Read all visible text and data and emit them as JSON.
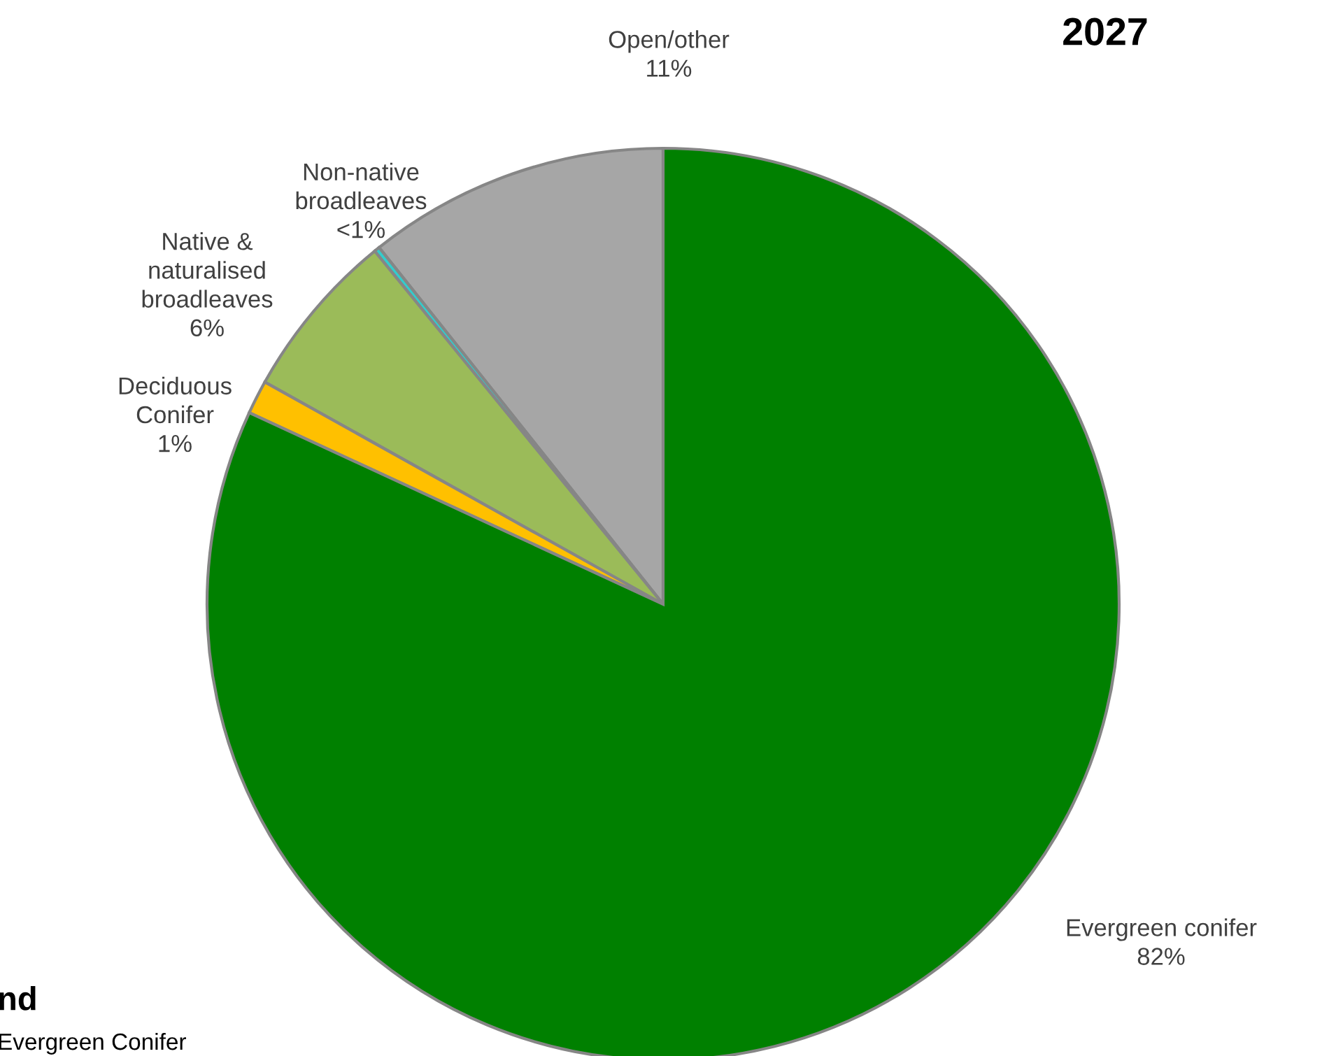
{
  "chart_data": {
    "type": "pie",
    "title": "2027",
    "categories": [
      "Open/other",
      "Non-native\nbroadleaves",
      "Native &\nnaturalised\nbroadleaves",
      "Deciduous\nConifer",
      "Evergreen conifer"
    ],
    "values": [
      10.7,
      0.2,
      6.0,
      1.2,
      81.9
    ],
    "value_labels": [
      "11%",
      "<1%",
      "6%",
      "1%",
      "82%"
    ],
    "colors": [
      "#a6a6a6",
      "#33cccc",
      "#9bbb59",
      "#ffc000",
      "#008000"
    ],
    "annotations": [
      "nd",
      "Evergreen Conifer"
    ]
  }
}
